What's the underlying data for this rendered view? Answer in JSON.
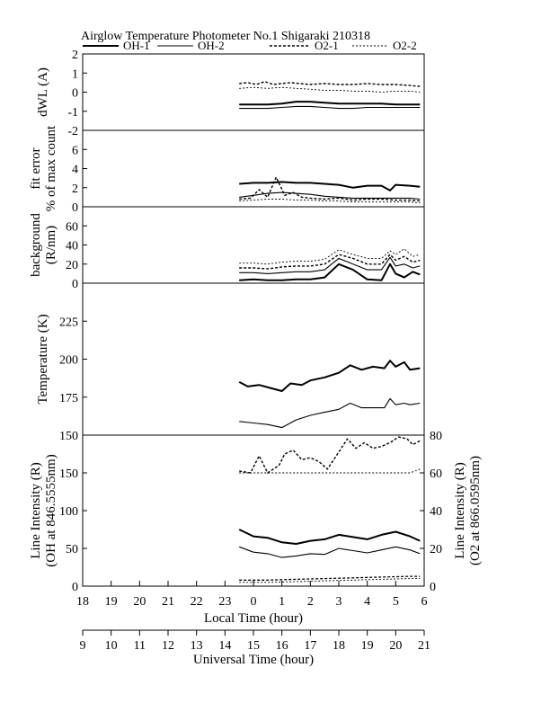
{
  "chart_data": {
    "type": "line",
    "title": "Airglow Temperature Photometer No.1  Shigaraki  210318",
    "legend": [
      "OH-1",
      "OH-2",
      "O2-1",
      "O2-2"
    ],
    "x_axis_local": {
      "label": "Local Time (hour)",
      "range": [
        18,
        30
      ],
      "ticks": [
        "18",
        "19",
        "20",
        "21",
        "22",
        "23",
        "0",
        "1",
        "2",
        "3",
        "4",
        "5",
        "6"
      ]
    },
    "x_axis_universal": {
      "label": "Universal Time (hour)",
      "range": [
        9,
        21
      ],
      "ticks": [
        "9",
        "10",
        "11",
        "12",
        "13",
        "14",
        "15",
        "16",
        "17",
        "18",
        "19",
        "20",
        "21"
      ]
    },
    "panels": [
      {
        "id": "dwl",
        "ylabel": [
          "dWL (A)"
        ],
        "ylim": [
          -2,
          2
        ],
        "ticks": [
          "2",
          "1",
          "0",
          "-1",
          "-2"
        ],
        "series": [
          {
            "name": "OH-1",
            "x": [
              23.5,
              24.0,
              24.5,
              25.0,
              25.5,
              26.0,
              26.5,
              27.0,
              27.5,
              28.0,
              28.5,
              29.0,
              29.5,
              29.85
            ],
            "y": [
              -0.65,
              -0.65,
              -0.65,
              -0.6,
              -0.5,
              -0.5,
              -0.55,
              -0.6,
              -0.6,
              -0.6,
              -0.6,
              -0.65,
              -0.65,
              -0.65
            ]
          },
          {
            "name": "OH-2",
            "x": [
              23.5,
              24.0,
              24.5,
              25.0,
              25.5,
              26.0,
              26.5,
              27.0,
              27.5,
              28.0,
              28.5,
              29.0,
              29.5,
              29.85
            ],
            "y": [
              -0.85,
              -0.85,
              -0.85,
              -0.8,
              -0.75,
              -0.75,
              -0.8,
              -0.85,
              -0.85,
              -0.8,
              -0.8,
              -0.8,
              -0.8,
              -0.8
            ]
          },
          {
            "name": "O2-1",
            "x": [
              23.5,
              23.8,
              24.1,
              24.4,
              24.7,
              25.0,
              25.3,
              25.6,
              26.0,
              26.5,
              27.0,
              27.5,
              28.0,
              28.5,
              29.0,
              29.5,
              29.85
            ],
            "y": [
              0.45,
              0.5,
              0.4,
              0.55,
              0.4,
              0.45,
              0.5,
              0.45,
              0.4,
              0.45,
              0.4,
              0.4,
              0.45,
              0.4,
              0.4,
              0.35,
              0.3
            ]
          },
          {
            "name": "O2-2",
            "x": [
              23.5,
              24.0,
              24.5,
              25.0,
              25.5,
              26.0,
              26.5,
              27.0,
              27.5,
              28.0,
              28.5,
              29.0,
              29.5,
              29.85
            ],
            "y": [
              0.2,
              0.25,
              0.2,
              0.25,
              0.2,
              0.15,
              0.1,
              0.1,
              0.05,
              0.05,
              0.0,
              0.05,
              0.05,
              0.0
            ]
          }
        ]
      },
      {
        "id": "fit-error",
        "ylabel": [
          "fit error",
          "% of max count"
        ],
        "ylim": [
          0,
          8
        ],
        "ticks": [
          "6",
          "4",
          "2",
          "0"
        ],
        "series": [
          {
            "name": "OH-1",
            "x": [
              23.5,
              24.0,
              24.5,
              25.0,
              25.5,
              26.0,
              26.5,
              27.0,
              27.5,
              28.0,
              28.5,
              28.8,
              29.0,
              29.5,
              29.85
            ],
            "y": [
              2.4,
              2.5,
              2.5,
              2.6,
              2.5,
              2.5,
              2.4,
              2.3,
              2.0,
              2.2,
              2.2,
              1.7,
              2.3,
              2.2,
              2.1
            ]
          },
          {
            "name": "OH-2",
            "x": [
              23.5,
              24.0,
              24.5,
              25.0,
              25.5,
              26.0,
              26.5,
              27.0,
              27.5,
              28.0,
              28.5,
              29.0,
              29.5,
              29.85
            ],
            "y": [
              1.0,
              1.2,
              1.4,
              1.5,
              1.4,
              1.3,
              1.1,
              1.0,
              0.9,
              0.9,
              0.9,
              0.9,
              0.9,
              0.8
            ]
          },
          {
            "name": "O2-1",
            "x": [
              23.5,
              23.9,
              24.2,
              24.5,
              24.8,
              25.1,
              25.4,
              25.7,
              26.0,
              26.5,
              27.0,
              27.5,
              28.0,
              28.5,
              29.0,
              29.5,
              29.85
            ],
            "y": [
              0.8,
              0.9,
              1.8,
              1.0,
              3.1,
              1.2,
              1.5,
              1.0,
              0.9,
              0.8,
              0.9,
              0.7,
              0.8,
              0.8,
              0.7,
              0.7,
              0.6
            ]
          },
          {
            "name": "O2-2",
            "x": [
              23.5,
              24.0,
              24.5,
              25.0,
              25.5,
              26.0,
              26.5,
              27.0,
              27.5,
              28.0,
              28.5,
              29.0,
              29.5,
              29.85
            ],
            "y": [
              0.6,
              0.7,
              0.8,
              0.8,
              0.7,
              0.7,
              0.6,
              0.6,
              0.5,
              0.5,
              0.5,
              0.5,
              0.5,
              0.4
            ]
          }
        ]
      },
      {
        "id": "background",
        "ylabel": [
          "background",
          "(R/nm)"
        ],
        "ylim": [
          0,
          80
        ],
        "ticks": [
          "60",
          "40",
          "20",
          "0"
        ],
        "series": [
          {
            "name": "OH-1",
            "x": [
              23.5,
              24.0,
              24.5,
              25.0,
              25.5,
              26.0,
              26.5,
              27.0,
              27.5,
              28.0,
              28.5,
              28.8,
              29.0,
              29.3,
              29.6,
              29.85
            ],
            "y": [
              3,
              4,
              3,
              3,
              4,
              4,
              6,
              20,
              14,
              4,
              3,
              20,
              10,
              6,
              12,
              9
            ]
          },
          {
            "name": "OH-2",
            "x": [
              23.5,
              24.0,
              24.5,
              25.0,
              25.5,
              26.0,
              26.5,
              27.0,
              27.5,
              28.0,
              28.5,
              28.8,
              29.0,
              29.3,
              29.6,
              29.85
            ],
            "y": [
              11,
              11,
              10,
              11,
              12,
              12,
              14,
              26,
              20,
              14,
              14,
              27,
              18,
              20,
              16,
              18
            ]
          },
          {
            "name": "O2-1",
            "x": [
              23.5,
              24.0,
              24.5,
              25.0,
              25.5,
              26.0,
              26.5,
              27.0,
              27.5,
              28.0,
              28.5,
              28.8,
              29.0,
              29.3,
              29.6,
              29.85
            ],
            "y": [
              16,
              16,
              15,
              17,
              18,
              18,
              20,
              30,
              26,
              20,
              20,
              30,
              24,
              28,
              22,
              24
            ]
          },
          {
            "name": "O2-2",
            "x": [
              23.5,
              24.0,
              24.5,
              25.0,
              25.5,
              26.0,
              26.5,
              27.0,
              27.5,
              28.0,
              28.5,
              28.8,
              29.0,
              29.3,
              29.6,
              29.85
            ],
            "y": [
              21,
              21,
              20,
              22,
              23,
              23,
              25,
              35,
              30,
              26,
              26,
              34,
              30,
              36,
              28,
              30
            ]
          }
        ]
      },
      {
        "id": "temperature",
        "ylabel": [
          "Temperature (K)"
        ],
        "ylim": [
          150,
          250
        ],
        "ticks": [
          "225",
          "200",
          "175",
          "150"
        ],
        "series": [
          {
            "name": "OH-1",
            "x": [
              23.5,
              23.8,
              24.2,
              24.6,
              25.0,
              25.3,
              25.7,
              26.0,
              26.5,
              27.0,
              27.4,
              27.8,
              28.2,
              28.6,
              28.8,
              29.0,
              29.3,
              29.5,
              29.85
            ],
            "y": [
              185,
              182,
              183,
              181,
              179,
              184,
              183,
              186,
              188,
              191,
              196,
              193,
              195,
              194,
              199,
              195,
              198,
              193,
              194
            ]
          },
          {
            "name": "OH-2",
            "x": [
              23.5,
              24.0,
              24.5,
              25.0,
              25.5,
              26.0,
              26.5,
              27.0,
              27.4,
              27.8,
              28.2,
              28.6,
              28.8,
              29.0,
              29.3,
              29.5,
              29.85
            ],
            "y": [
              159,
              158,
              157,
              155,
              160,
              163,
              165,
              167,
              171,
              168,
              168,
              168,
              174,
              170,
              171,
              170,
              171
            ]
          }
        ]
      },
      {
        "id": "line-intensity",
        "ylabel": [
          "Line Intensity (R)",
          "(OH at 846.5555nm)"
        ],
        "ylim": [
          0,
          200
        ],
        "ticks": [
          "150",
          "100",
          "50",
          "0"
        ],
        "ylabel_right": [
          "Line Intensity (R)",
          "(O2 at 866.0595nm)"
        ],
        "ylim_right": [
          0,
          80
        ],
        "ticks_right": [
          "80",
          "60",
          "40",
          "20",
          "0"
        ],
        "series": [
          {
            "name": "OH-1",
            "axis": "left",
            "x": [
              23.5,
              24.0,
              24.5,
              25.0,
              25.5,
              26.0,
              26.5,
              27.0,
              27.5,
              28.0,
              28.5,
              29.0,
              29.5,
              29.85
            ],
            "y": [
              75,
              66,
              64,
              58,
              56,
              60,
              62,
              68,
              65,
              62,
              68,
              72,
              66,
              60
            ]
          },
          {
            "name": "OH-2",
            "axis": "left",
            "x": [
              23.5,
              24.0,
              24.5,
              25.0,
              25.5,
              26.0,
              26.5,
              27.0,
              27.5,
              28.0,
              28.5,
              29.0,
              29.5,
              29.85
            ],
            "y": [
              52,
              45,
              43,
              38,
              40,
              43,
              42,
              50,
              47,
              44,
              48,
              52,
              48,
              43
            ]
          },
          {
            "name": "O2-1",
            "axis": "right",
            "x": [
              23.5,
              23.9,
              24.2,
              24.5,
              24.9,
              25.1,
              25.4,
              25.7,
              26.0,
              26.3,
              26.6,
              27.0,
              27.3,
              27.6,
              27.9,
              28.2,
              28.5,
              28.8,
              29.1,
              29.4,
              29.6,
              29.85
            ],
            "y": [
              61,
              60,
              69,
              60,
              64,
              70,
              72,
              67,
              68,
              66,
              62,
              71,
              78,
              73,
              76,
              73,
              74,
              76,
              79,
              78,
              75,
              77
            ]
          },
          {
            "name": "O2-2",
            "axis": "right",
            "x": [
              23.5,
              24.0,
              24.5,
              25.0,
              25.5,
              26.0,
              26.5,
              27.0,
              27.5,
              28.0,
              28.5,
              29.0,
              29.5,
              29.85
            ],
            "y": [
              60,
              60,
              60,
              60,
              60,
              60,
              60,
              60,
              60,
              60,
              60,
              60,
              60,
              62
            ]
          },
          {
            "name": "O2-1-low",
            "axis": "left",
            "x": [
              23.5,
              24.5,
              25.5,
              26.5,
              27.5,
              28.5,
              29.5,
              29.85
            ],
            "y": [
              8,
              8,
              9,
              10,
              11,
              12,
              13,
              13
            ]
          },
          {
            "name": "O2-2-low",
            "axis": "left",
            "x": [
              23.5,
              24.5,
              25.5,
              26.5,
              27.5,
              28.5,
              29.5,
              29.85
            ],
            "y": [
              5,
              5,
              6,
              7,
              8,
              9,
              10,
              10
            ]
          }
        ]
      }
    ]
  }
}
